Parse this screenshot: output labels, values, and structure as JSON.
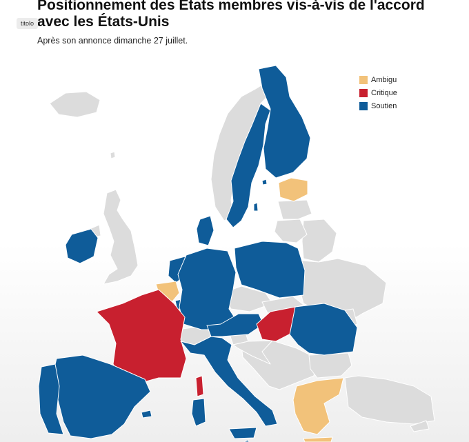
{
  "title": "Positionnement des États membres vis-à-vis de l'accord avec les États-Unis",
  "subtitle": "Après son annonce dimanche 27 juillet.",
  "tag": "titolo",
  "colors": {
    "ambigu": "#f2c27a",
    "critique": "#c8202f",
    "soutien": "#0f5c99",
    "non_eu": "#dcdcdc"
  },
  "legend": [
    {
      "label": "Ambigu",
      "category": "ambigu"
    },
    {
      "label": "Critique",
      "category": "critique"
    },
    {
      "label": "Soutien",
      "category": "soutien"
    }
  ],
  "countries": [
    {
      "id": "iceland",
      "category": "non_eu"
    },
    {
      "id": "norway",
      "category": "non_eu"
    },
    {
      "id": "great-britain",
      "category": "non_eu"
    },
    {
      "id": "northern-ireland",
      "category": "non_eu"
    },
    {
      "id": "switzerland",
      "category": "non_eu"
    },
    {
      "id": "belarus",
      "category": "non_eu"
    },
    {
      "id": "ukraine",
      "category": "non_eu"
    },
    {
      "id": "balkans",
      "category": "non_eu"
    },
    {
      "id": "faroe",
      "category": "non_eu"
    },
    {
      "id": "moldova",
      "category": "non_eu"
    },
    {
      "id": "turkey",
      "category": "non_eu"
    },
    {
      "id": "sweden",
      "category": "soutien"
    },
    {
      "id": "finland",
      "category": "soutien"
    },
    {
      "id": "estonia",
      "category": "ambigu"
    },
    {
      "id": "latvia",
      "category": "non_eu"
    },
    {
      "id": "lithuania",
      "category": "non_eu"
    },
    {
      "id": "denmark",
      "category": "soutien"
    },
    {
      "id": "ireland",
      "category": "soutien"
    },
    {
      "id": "netherlands",
      "category": "soutien"
    },
    {
      "id": "belgium",
      "category": "ambigu"
    },
    {
      "id": "luxembourg",
      "category": "soutien"
    },
    {
      "id": "germany",
      "category": "soutien"
    },
    {
      "id": "poland",
      "category": "soutien"
    },
    {
      "id": "czechia",
      "category": "non_eu"
    },
    {
      "id": "slovakia",
      "category": "non_eu"
    },
    {
      "id": "austria",
      "category": "soutien"
    },
    {
      "id": "hungary",
      "category": "critique"
    },
    {
      "id": "romania",
      "category": "soutien"
    },
    {
      "id": "bulgaria",
      "category": "non_eu"
    },
    {
      "id": "slovenia",
      "category": "non_eu"
    },
    {
      "id": "croatia",
      "category": "non_eu"
    },
    {
      "id": "france",
      "category": "critique"
    },
    {
      "id": "corsica",
      "category": "critique"
    },
    {
      "id": "italy",
      "category": "soutien"
    },
    {
      "id": "sardinia",
      "category": "soutien"
    },
    {
      "id": "sicily",
      "category": "soutien"
    },
    {
      "id": "malta",
      "category": "soutien"
    },
    {
      "id": "spain",
      "category": "soutien"
    },
    {
      "id": "balearics",
      "category": "soutien"
    },
    {
      "id": "portugal",
      "category": "soutien"
    },
    {
      "id": "greece",
      "category": "ambigu"
    },
    {
      "id": "crete",
      "category": "ambigu"
    },
    {
      "id": "gotland",
      "category": "soutien"
    },
    {
      "id": "aland",
      "category": "soutien"
    },
    {
      "id": "cyprus",
      "category": "non_eu"
    }
  ]
}
